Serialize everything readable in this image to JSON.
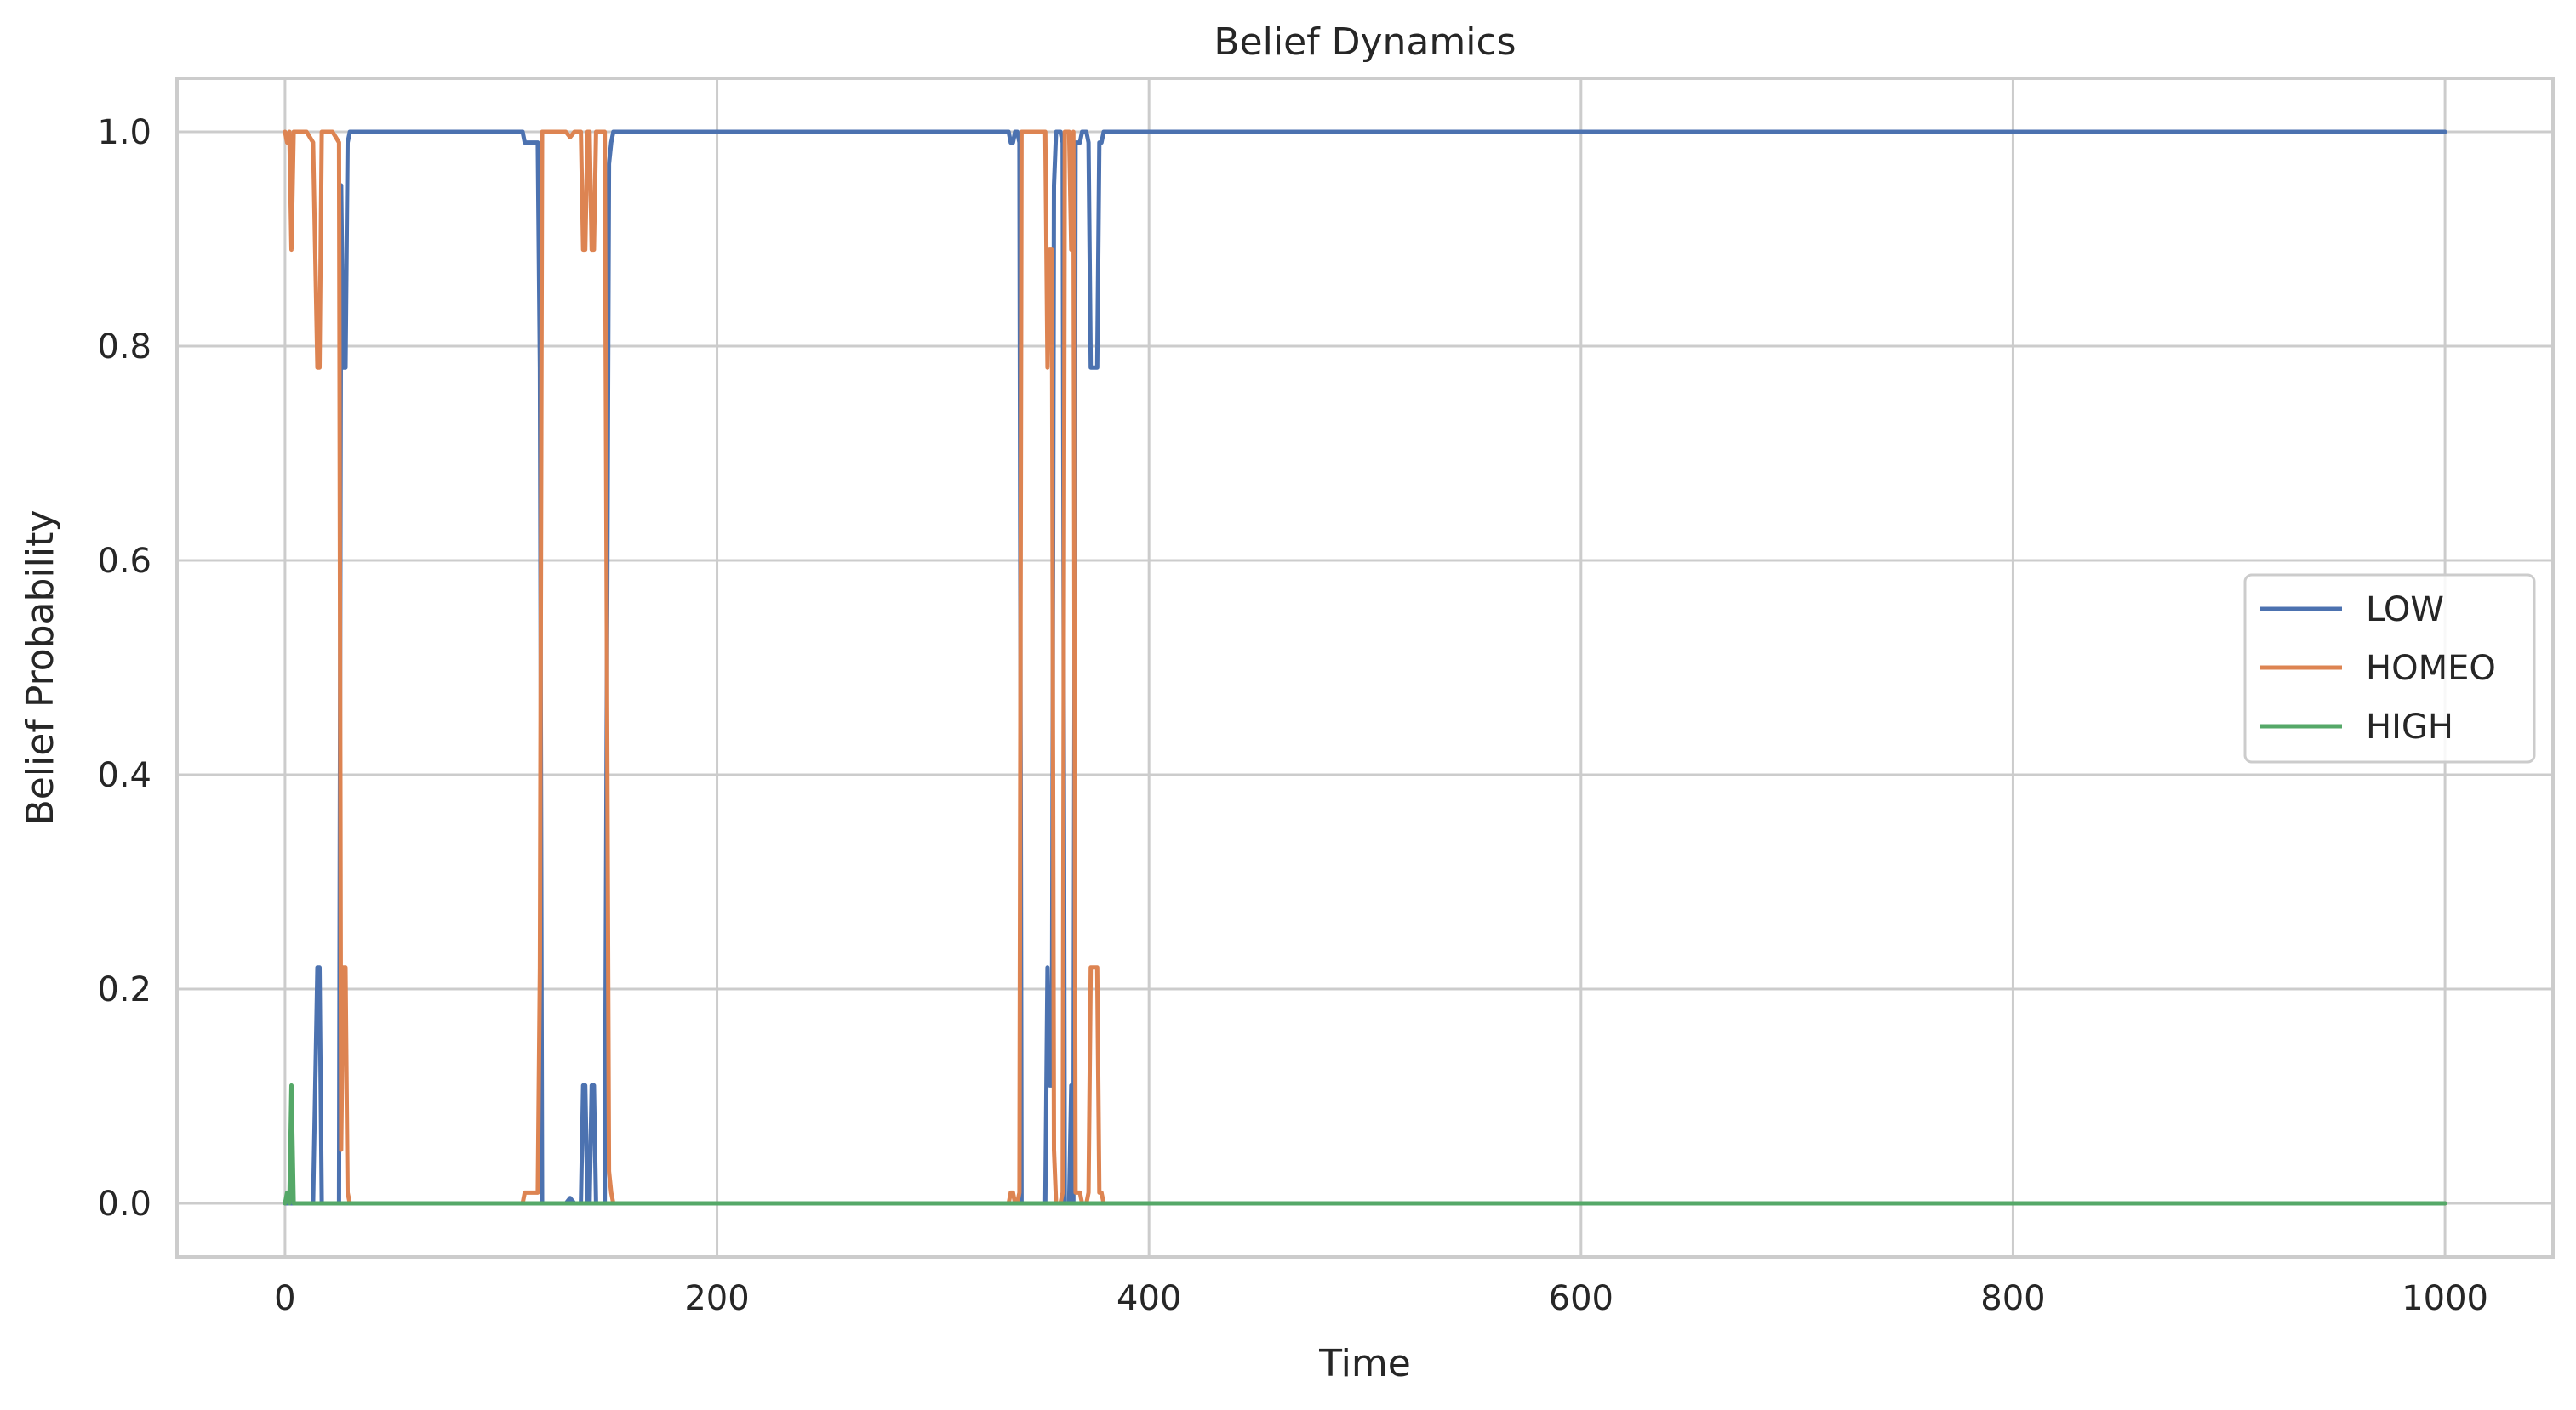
{
  "chart_data": {
    "type": "line",
    "title": "Belief Dynamics",
    "xlabel": "Time",
    "ylabel": "Belief Probability",
    "xlim": [
      -50,
      1050
    ],
    "ylim": [
      -0.05,
      1.05
    ],
    "xticks": [
      0,
      200,
      400,
      600,
      800,
      1000
    ],
    "xtick_labels": [
      "0",
      "200",
      "400",
      "600",
      "800",
      "1000"
    ],
    "yticks": [
      0.0,
      0.2,
      0.4,
      0.6,
      0.8,
      1.0
    ],
    "ytick_labels": [
      "0.0",
      "0.2",
      "0.4",
      "0.6",
      "0.8",
      "1.0"
    ],
    "grid": true,
    "legend_position": "center-right",
    "series": [
      {
        "name": "LOW",
        "color": "#4c72b0",
        "points": [
          [
            0,
            0
          ],
          [
            1,
            0
          ],
          [
            2,
            0
          ],
          [
            3,
            0
          ],
          [
            4,
            0
          ],
          [
            5,
            0
          ],
          [
            10,
            0
          ],
          [
            13,
            0
          ],
          [
            15,
            0.22
          ],
          [
            16,
            0.22
          ],
          [
            17,
            0
          ],
          [
            22,
            0
          ],
          [
            25,
            0
          ],
          [
            26,
            0.95
          ],
          [
            27,
            0.78
          ],
          [
            28,
            0.78
          ],
          [
            29,
            0.99
          ],
          [
            30,
            1
          ],
          [
            33,
            1
          ],
          [
            110,
            1
          ],
          [
            111,
            0.99
          ],
          [
            117,
            0.99
          ],
          [
            118,
            0.78
          ],
          [
            119,
            0
          ],
          [
            120,
            0
          ],
          [
            121,
            0
          ],
          [
            130,
            0
          ],
          [
            132,
            0.005
          ],
          [
            134,
            0
          ],
          [
            137,
            0
          ],
          [
            138,
            0.11
          ],
          [
            139,
            0.11
          ],
          [
            140,
            0
          ],
          [
            141,
            0
          ],
          [
            142,
            0.11
          ],
          [
            143,
            0.11
          ],
          [
            144,
            0
          ],
          [
            146,
            0
          ],
          [
            148,
            0
          ],
          [
            150,
            0.97
          ],
          [
            151,
            0.99
          ],
          [
            152,
            1
          ],
          [
            335,
            1
          ],
          [
            336,
            0.99
          ],
          [
            337,
            0.99
          ],
          [
            338,
            1
          ],
          [
            339,
            1
          ],
          [
            340,
            0.99
          ],
          [
            341,
            0
          ],
          [
            344,
            0
          ],
          [
            346,
            0
          ],
          [
            348,
            0
          ],
          [
            350,
            0
          ],
          [
            352,
            0
          ],
          [
            353,
            0.22
          ],
          [
            354,
            0.11
          ],
          [
            355,
            0.11
          ],
          [
            356,
            0.95
          ],
          [
            357,
            1
          ],
          [
            358,
            1
          ],
          [
            359,
            1
          ],
          [
            360,
            0.99
          ],
          [
            361,
            0
          ],
          [
            363,
            0
          ],
          [
            364,
            0.11
          ],
          [
            365,
            0
          ],
          [
            366,
            0.99
          ],
          [
            368,
            0.99
          ],
          [
            369,
            1
          ],
          [
            371,
            1
          ],
          [
            372,
            0.99
          ],
          [
            373,
            0.78
          ],
          [
            376,
            0.78
          ],
          [
            377,
            0.99
          ],
          [
            378,
            0.99
          ],
          [
            379,
            1
          ],
          [
            380,
            1
          ],
          [
            1000,
            1
          ]
        ]
      },
      {
        "name": "HOMEO",
        "color": "#dd8452",
        "points": [
          [
            0,
            1
          ],
          [
            1,
            0.99
          ],
          [
            2,
            1
          ],
          [
            3,
            0.89
          ],
          [
            4,
            1
          ],
          [
            5,
            1
          ],
          [
            10,
            1
          ],
          [
            13,
            0.99
          ],
          [
            15,
            0.78
          ],
          [
            16,
            0.78
          ],
          [
            17,
            1
          ],
          [
            22,
            1
          ],
          [
            25,
            0.99
          ],
          [
            26,
            0.05
          ],
          [
            27,
            0.22
          ],
          [
            28,
            0.22
          ],
          [
            29,
            0.01
          ],
          [
            30,
            0
          ],
          [
            33,
            0
          ],
          [
            110,
            0
          ],
          [
            111,
            0.01
          ],
          [
            117,
            0.01
          ],
          [
            118,
            0.22
          ],
          [
            119,
            1
          ],
          [
            120,
            1
          ],
          [
            121,
            1
          ],
          [
            130,
            1
          ],
          [
            132,
            0.995
          ],
          [
            134,
            1
          ],
          [
            137,
            1
          ],
          [
            138,
            0.89
          ],
          [
            139,
            0.89
          ],
          [
            140,
            1
          ],
          [
            141,
            1
          ],
          [
            142,
            0.89
          ],
          [
            143,
            0.89
          ],
          [
            144,
            1
          ],
          [
            146,
            1
          ],
          [
            148,
            1
          ],
          [
            150,
            0.03
          ],
          [
            151,
            0.01
          ],
          [
            152,
            0
          ],
          [
            335,
            0
          ],
          [
            336,
            0.01
          ],
          [
            337,
            0.01
          ],
          [
            338,
            0
          ],
          [
            339,
            0
          ],
          [
            340,
            0.01
          ],
          [
            341,
            1
          ],
          [
            344,
            1
          ],
          [
            346,
            1
          ],
          [
            348,
            1
          ],
          [
            350,
            1
          ],
          [
            352,
            1
          ],
          [
            353,
            0.78
          ],
          [
            354,
            0.89
          ],
          [
            355,
            0.89
          ],
          [
            356,
            0.05
          ],
          [
            357,
            0
          ],
          [
            358,
            0
          ],
          [
            359,
            0
          ],
          [
            360,
            0.01
          ],
          [
            361,
            1
          ],
          [
            363,
            1
          ],
          [
            364,
            0.89
          ],
          [
            365,
            1
          ],
          [
            366,
            0.01
          ],
          [
            368,
            0.01
          ],
          [
            369,
            0
          ],
          [
            371,
            0
          ],
          [
            372,
            0.01
          ],
          [
            373,
            0.22
          ],
          [
            376,
            0.22
          ],
          [
            377,
            0.01
          ],
          [
            378,
            0.01
          ],
          [
            379,
            0
          ],
          [
            380,
            0
          ],
          [
            1000,
            0
          ]
        ]
      },
      {
        "name": "HIGH",
        "color": "#55a868",
        "points": [
          [
            0,
            0
          ],
          [
            1,
            0.01
          ],
          [
            2,
            0
          ],
          [
            3,
            0.11
          ],
          [
            4,
            0
          ],
          [
            5,
            0
          ],
          [
            1000,
            0
          ]
        ]
      }
    ]
  }
}
